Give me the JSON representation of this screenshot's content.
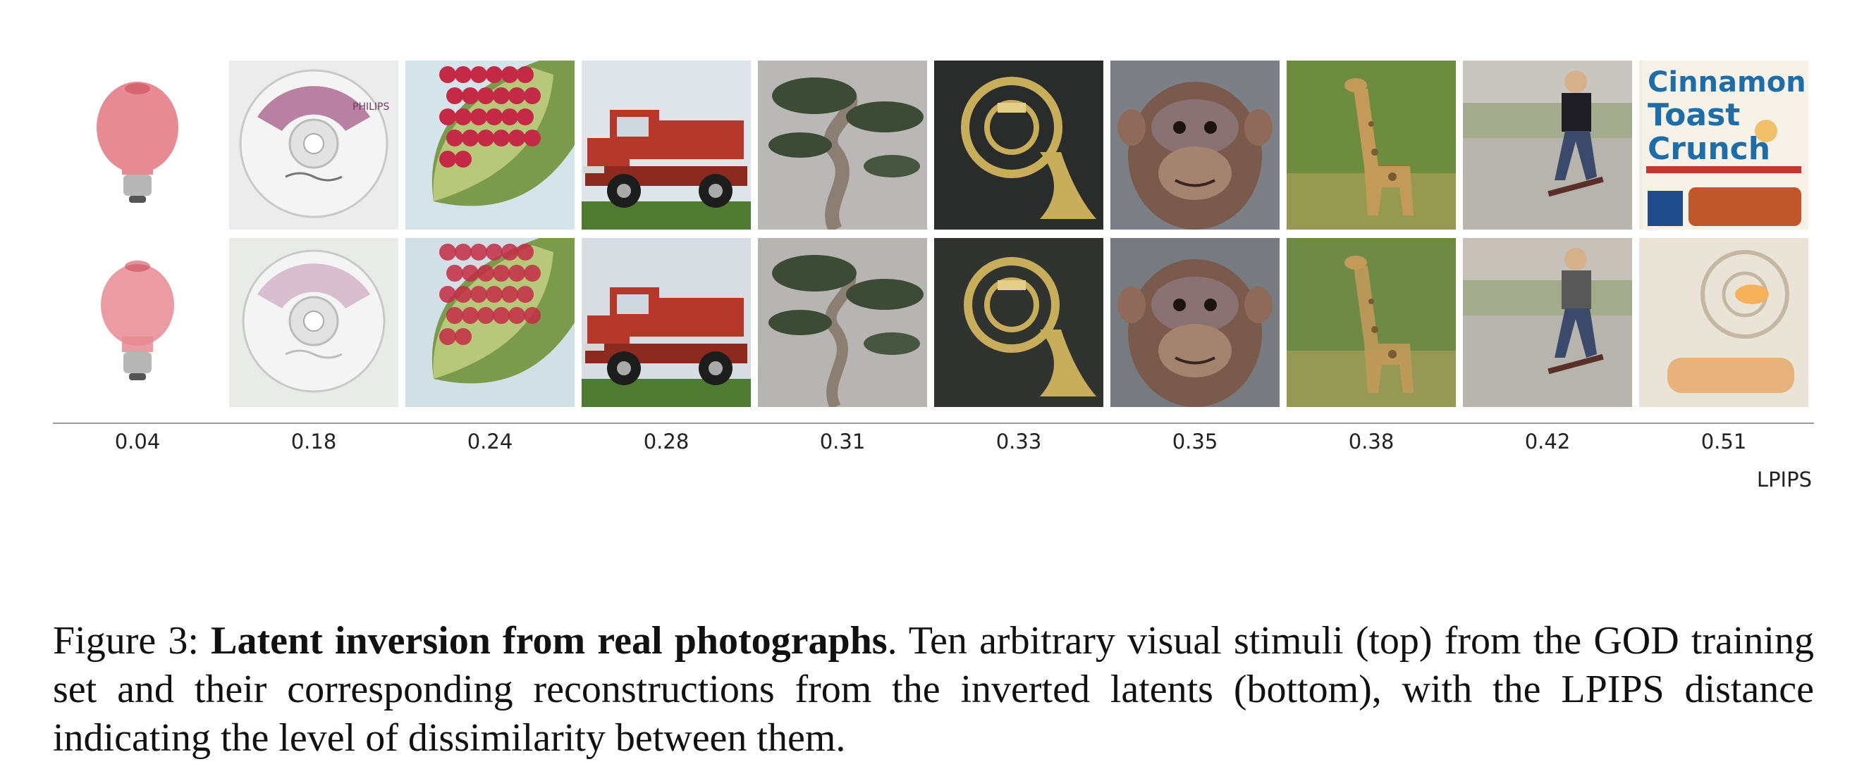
{
  "figure": {
    "metric_label": "LPIPS",
    "scores": [
      "0.04",
      "0.18",
      "0.24",
      "0.28",
      "0.31",
      "0.33",
      "0.35",
      "0.38",
      "0.42",
      "0.51"
    ],
    "stimuli": [
      {
        "icon": "lightbulb",
        "top_bg": "#ffffff",
        "bottom_bg": "#ffffff",
        "accent": "#e88a93"
      },
      {
        "icon": "compact-disc",
        "top_bg": "#ececec",
        "bottom_bg": "#e9ebe9",
        "accent": "#a45a86"
      },
      {
        "icon": "pomegranate",
        "top_bg": "#d5e3ea",
        "bottom_bg": "#d2e0e6",
        "accent": "#c42a45"
      },
      {
        "icon": "fire-truck",
        "top_bg": "#dfe5ea",
        "bottom_bg": "#d7dde2",
        "accent": "#b5382a"
      },
      {
        "icon": "bonsai-tree",
        "top_bg": "#b9b8b6",
        "bottom_bg": "#b6b5b2",
        "accent": "#3d4a36"
      },
      {
        "icon": "french-horn",
        "top_bg": "#2a2c2c",
        "bottom_bg": "#313331",
        "accent": "#c8ad5a"
      },
      {
        "icon": "chimpanzee",
        "top_bg": "#7c8086",
        "bottom_bg": "#777a7e",
        "accent": "#7a5a4d"
      },
      {
        "icon": "giraffe",
        "top_bg": "#6e8c3e",
        "bottom_bg": "#6f8a44",
        "accent": "#c49a5a"
      },
      {
        "icon": "skateboarder",
        "top_bg": "#c9c6c1",
        "bottom_bg": "#c6c2ba",
        "accent": "#3b4a6b"
      },
      {
        "icon": "cereal-box",
        "top_bg": "#f2ede3",
        "bottom_bg": "#eae4d8",
        "accent": "#c0572a"
      }
    ],
    "cereal_box_text": {
      "line1": "Cinnamon",
      "line2": "Toast",
      "line3": "Crunch"
    },
    "cd_brand": "PHILIPS"
  },
  "caption": {
    "label": "Figure 3:",
    "title": "Latent inversion from real photographs",
    "text": ". Ten arbitrary visual stimuli (top) from the GOD training set and their corresponding reconstructions from the inverted latents (bottom), with the LPIPS distance indicating the level of dissimilarity between them."
  }
}
